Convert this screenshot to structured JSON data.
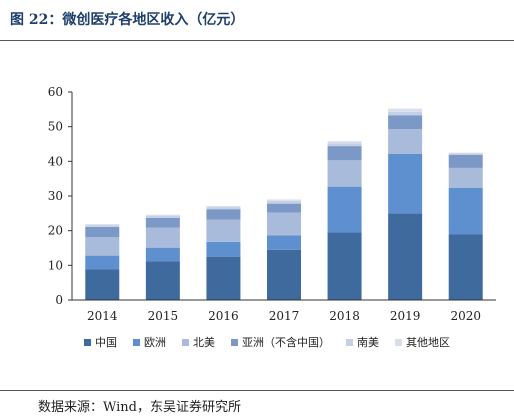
{
  "figure": {
    "title": "图 22：微创医疗各地区收入（亿元）",
    "source": "数据来源：Wind，东吴证券研究所"
  },
  "chart_data": {
    "type": "bar",
    "stacked": true,
    "categories": [
      "2014",
      "2015",
      "2016",
      "2017",
      "2018",
      "2019",
      "2020"
    ],
    "ylim": [
      0,
      60
    ],
    "yticks": [
      0,
      10,
      20,
      30,
      40,
      50,
      60
    ],
    "grid": false,
    "legend_position": "bottom",
    "series": [
      {
        "name": "中国",
        "color": "#3e6a9e",
        "values": [
          8.9,
          11.2,
          12.5,
          14.5,
          19.5,
          25.0,
          19.0
        ]
      },
      {
        "name": "欧洲",
        "color": "#5e8fce",
        "values": [
          3.9,
          3.9,
          4.3,
          4.1,
          13.2,
          17.2,
          13.4
        ]
      },
      {
        "name": "北美",
        "color": "#a8bbdb",
        "values": [
          5.3,
          5.8,
          6.4,
          6.6,
          7.6,
          7.1,
          5.7
        ]
      },
      {
        "name": "亚洲（不含中国）",
        "color": "#7c98c6",
        "values": [
          3.0,
          2.8,
          3.0,
          2.6,
          4.1,
          4.0,
          3.8
        ]
      },
      {
        "name": "南美",
        "color": "#c4d0e6",
        "values": [
          0.5,
          0.6,
          0.6,
          0.8,
          0.8,
          1.0,
          0.4
        ]
      },
      {
        "name": "其他地区",
        "color": "#d8dfeb",
        "values": [
          0.3,
          0.3,
          0.3,
          0.4,
          0.6,
          0.9,
          0.2
        ]
      }
    ]
  }
}
